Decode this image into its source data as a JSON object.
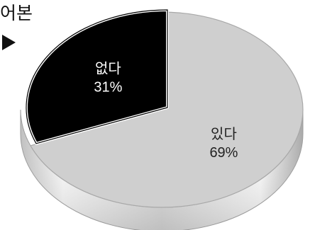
{
  "caption": "어본",
  "chart_data": {
    "type": "pie",
    "title": "",
    "slices": [
      {
        "label": "있다",
        "value": 69,
        "value_label": "69%",
        "color": "#cfcfcf",
        "exploded": false
      },
      {
        "label": "없다",
        "value": 31,
        "value_label": "31%",
        "color": "#000000",
        "exploded": true
      }
    ],
    "start": "12 o'clock, clockwise",
    "legend": "none",
    "style": "3d"
  }
}
